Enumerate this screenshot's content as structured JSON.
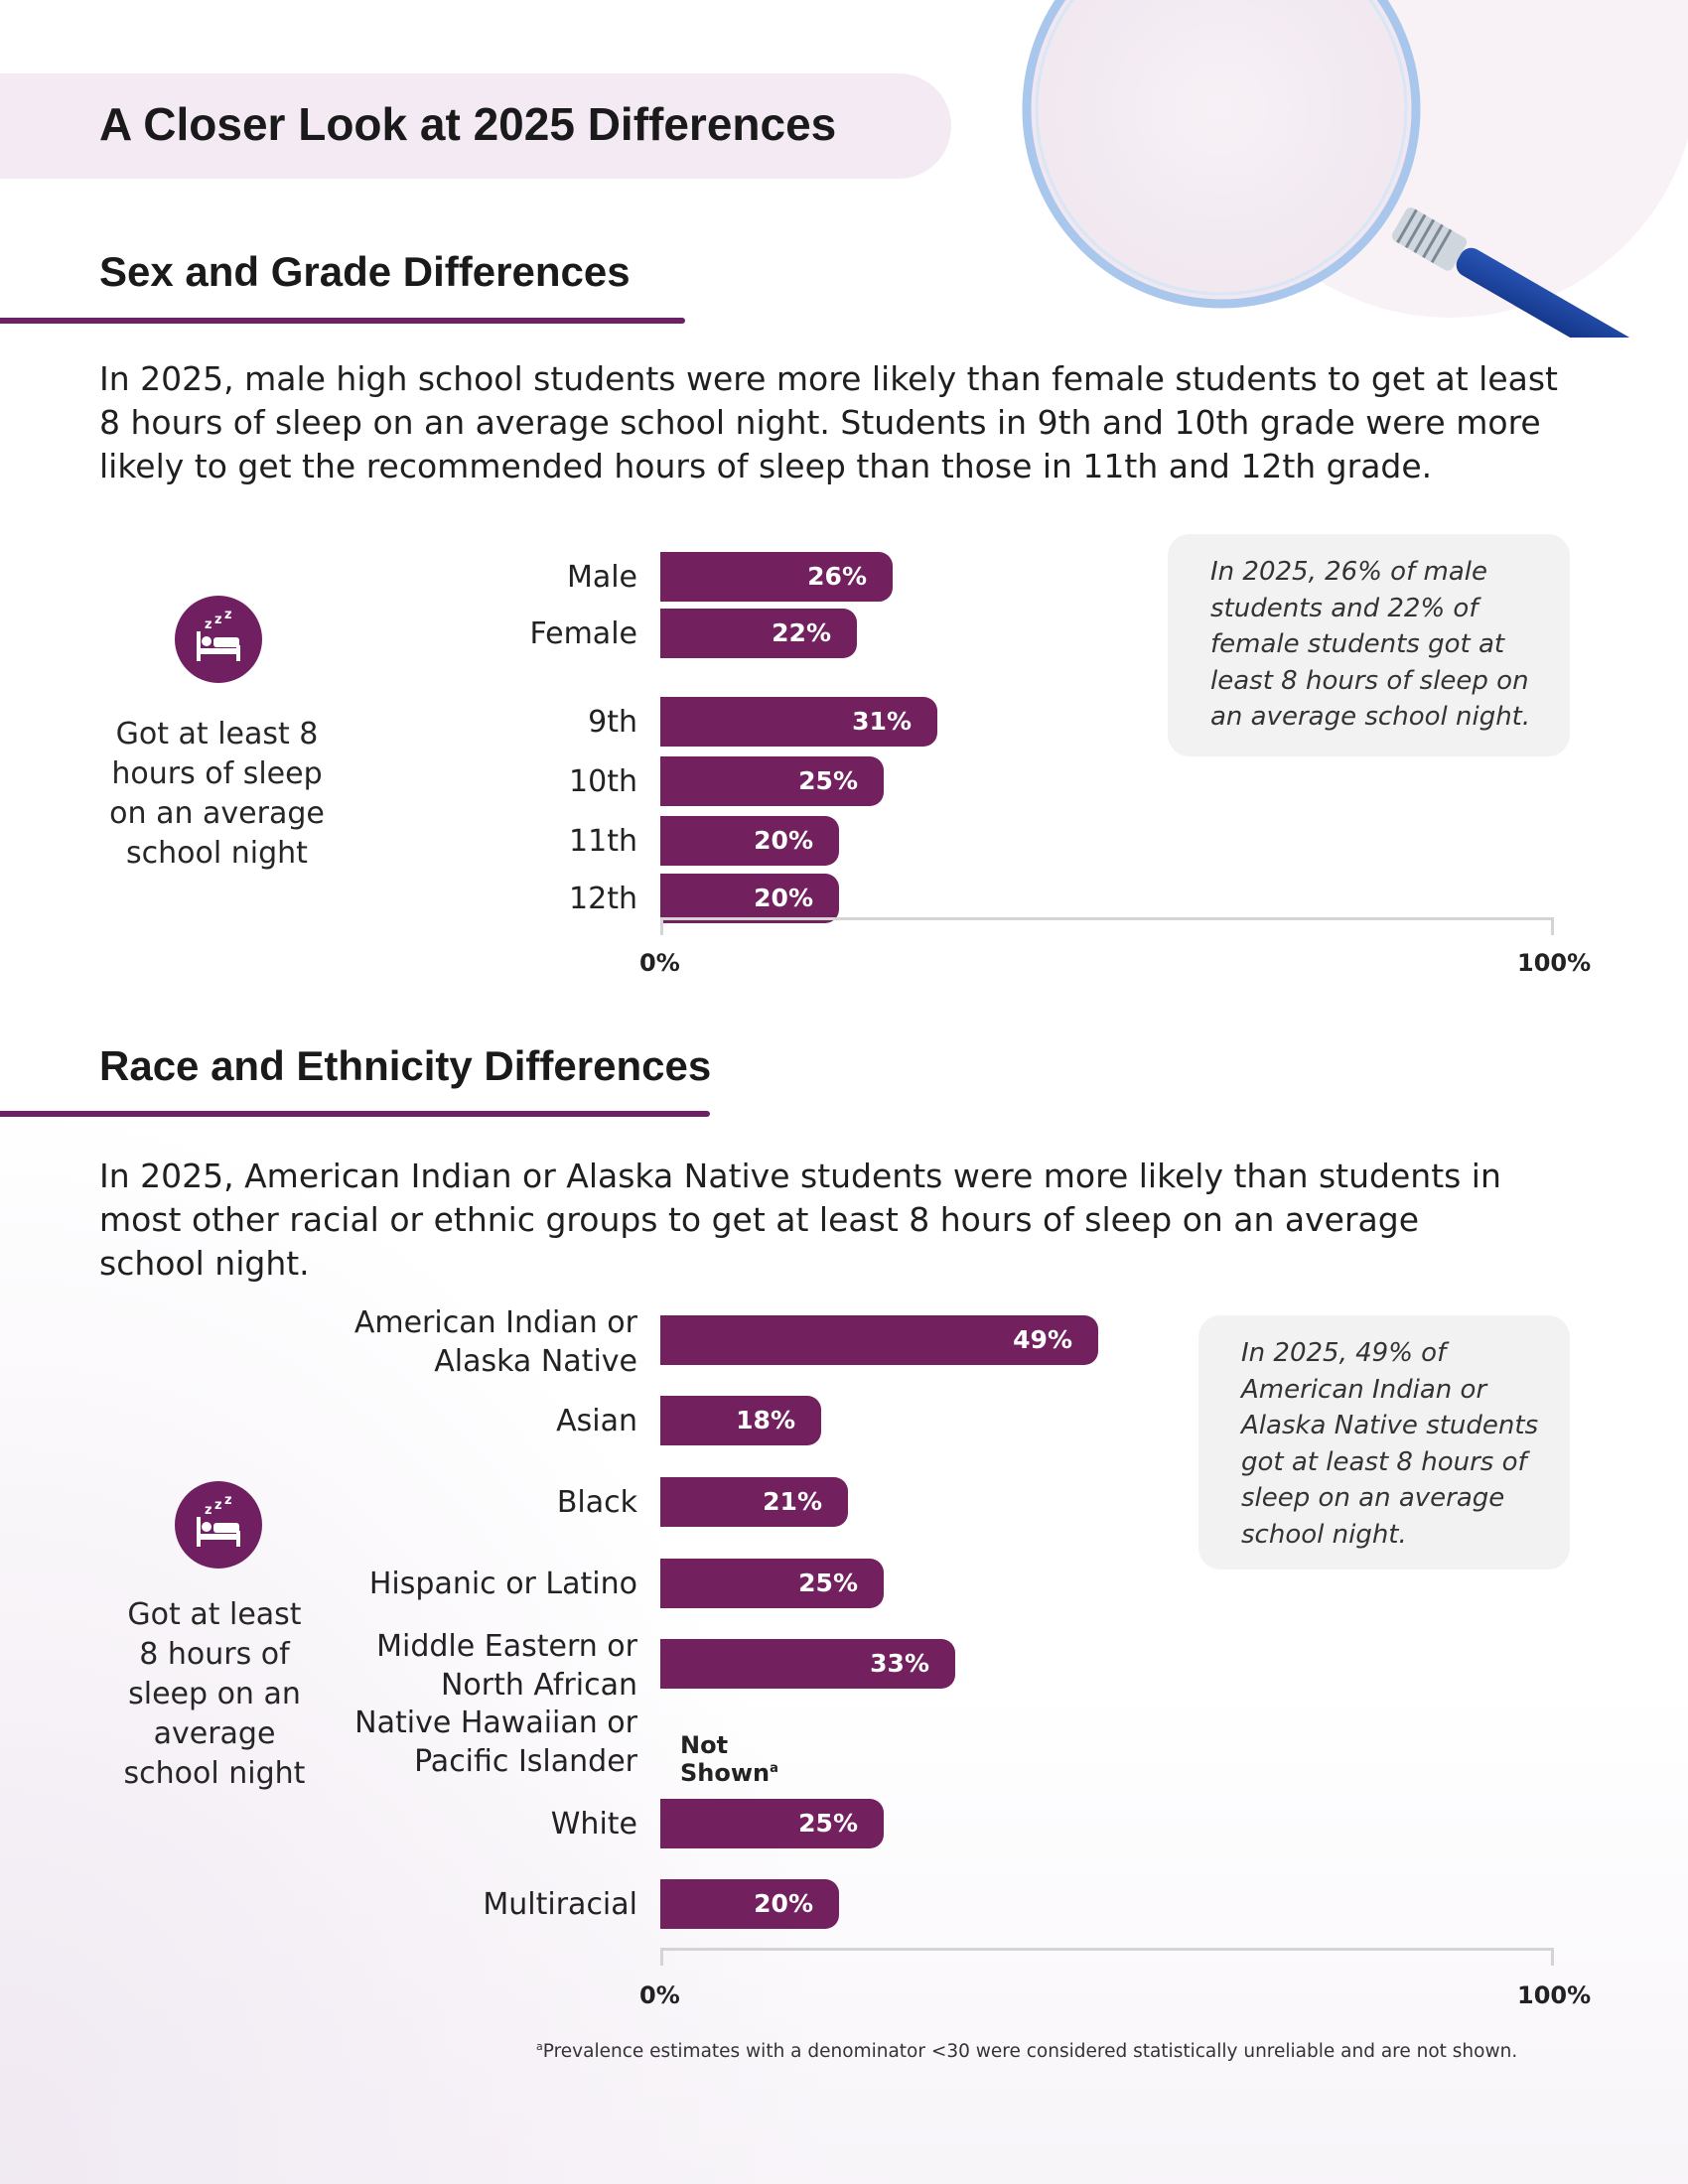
{
  "page": {
    "title": "A Closer Look at 2025 Differences"
  },
  "colors": {
    "bar": "#72205e",
    "accent": "#6b2163",
    "banner": "#f4eaf3",
    "card": "#f2f2f3"
  },
  "icons": {
    "magnifier": "magnifying-glass-icon",
    "sleep": "bed-sleep-icon"
  },
  "section1": {
    "title": "Sex and Grade Differences",
    "intro": "In 2025, male high school students were more likely than female students to get at least 8 hours of sleep on an average school night. Students in 9th and 10th grade were more likely to get the recommended hours of sleep than those in 11th and 12th grade.",
    "side_label": "Got at least 8 hours of sleep on an average school night",
    "note": "In 2025, 26% of male students and 22% of female students got at least 8 hours of sleep on an average school night."
  },
  "section2": {
    "title": "Race and Ethnicity Differences",
    "intro": "In 2025, American Indian or Alaska Native students were more likely than students in most other racial or ethnic groups to get at least 8 hours of sleep on an average school night.",
    "side_label": "Got at least 8 hours of sleep on an average school night",
    "note": "In 2025, 49% of American Indian or Alaska Native students got at least 8 hours of sleep on an average school night.",
    "not_shown_label": "Not Shown",
    "not_shown_sup": "a"
  },
  "footnote": {
    "marker": "a",
    "text": "Prevalence estimates with a denominator <30 were considered statistically unreliable and are not shown."
  },
  "chart_data": [
    {
      "type": "bar",
      "orientation": "horizontal",
      "categories": [
        "Male",
        "Female",
        "9th",
        "10th",
        "11th",
        "12th"
      ],
      "values": [
        26,
        22,
        31,
        25,
        20,
        20
      ],
      "value_labels": [
        "26%",
        "22%",
        "31%",
        "25%",
        "20%",
        "20%"
      ],
      "xlim": [
        0,
        100
      ],
      "tick_labels": [
        "0%",
        "100%"
      ],
      "grid": false
    },
    {
      "type": "bar",
      "orientation": "horizontal",
      "categories": [
        "American Indian or Alaska Native",
        "Asian",
        "Black",
        "Hispanic or Latino",
        "Middle Eastern or North African",
        "Native Hawaiian or Pacific Islander",
        "White",
        "Multiracial"
      ],
      "values": [
        49,
        18,
        21,
        25,
        33,
        null,
        25,
        20
      ],
      "value_labels": [
        "49%",
        "18%",
        "21%",
        "25%",
        "33%",
        "",
        "25%",
        "20%"
      ],
      "xlim": [
        0,
        100
      ],
      "tick_labels": [
        "0%",
        "100%"
      ],
      "grid": false
    }
  ]
}
